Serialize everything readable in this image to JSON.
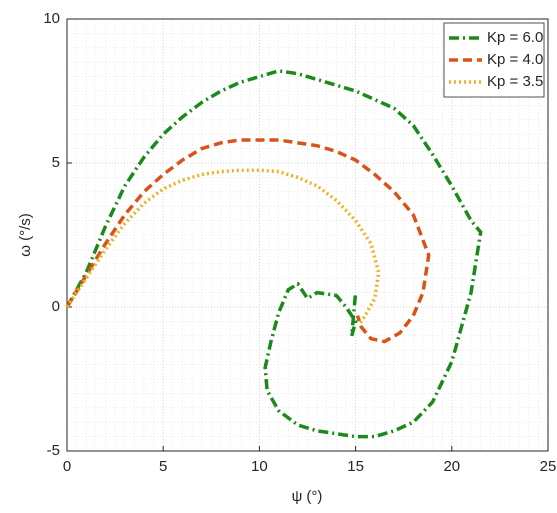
{
  "chart_data": {
    "type": "line",
    "xlabel": "ψ (°)",
    "ylabel": "ω (°/s)",
    "xlim": [
      0,
      25
    ],
    "xticks": [
      0,
      5,
      10,
      15,
      20,
      25
    ],
    "ylim": [
      -5,
      10
    ],
    "yticks": [
      -5,
      0,
      5,
      10
    ],
    "grid": true,
    "legend": "northeast",
    "series": [
      {
        "name": "Kp = 6.0",
        "color": "#1b8a1b",
        "linestyle": "dashdot",
        "x": [
          0,
          1,
          2,
          3,
          4,
          5,
          6,
          7,
          8,
          9,
          10,
          11,
          12,
          13,
          14,
          15,
          16,
          17,
          18,
          19,
          20,
          21,
          21.5,
          21,
          20,
          19,
          18,
          17,
          16,
          15,
          14,
          13,
          12,
          11,
          10.4,
          10.3,
          10.6,
          11,
          11.5,
          12,
          12.5,
          13,
          14,
          14.5,
          15,
          14.8,
          15
        ],
        "values": [
          0,
          1.2,
          2.8,
          4.2,
          5.2,
          6,
          6.6,
          7.1,
          7.5,
          7.8,
          8.0,
          8.2,
          8.1,
          7.9,
          7.7,
          7.5,
          7.2,
          6.9,
          6.3,
          5.3,
          4.2,
          3.0,
          2.6,
          0.5,
          -1.9,
          -3.3,
          -4.0,
          -4.3,
          -4.5,
          -4.5,
          -4.4,
          -4.3,
          -4.1,
          -3.6,
          -2.9,
          -2.1,
          -1.2,
          -0.2,
          0.6,
          0.8,
          0.3,
          0.5,
          0.4,
          0,
          -0.5,
          -1,
          0.5
        ]
      },
      {
        "name": "Kp = 4.0",
        "color": "#d95319",
        "linestyle": "dashed",
        "x": [
          0,
          1,
          2,
          3,
          4,
          5,
          6,
          7,
          8,
          9,
          10,
          11,
          12,
          13,
          14,
          15,
          16,
          17,
          18,
          18.8,
          18.5,
          18,
          17.3,
          16.5,
          15.8,
          15.3,
          15.1
        ],
        "values": [
          0,
          1.1,
          2.2,
          3.2,
          4,
          4.6,
          5.1,
          5.5,
          5.7,
          5.8,
          5.8,
          5.8,
          5.7,
          5.6,
          5.4,
          5.1,
          4.6,
          4,
          3.2,
          1.8,
          0.5,
          -0.3,
          -0.9,
          -1.2,
          -1.1,
          -0.7,
          -0.3
        ]
      },
      {
        "name": "Kp = 3.5",
        "color": "#edb120",
        "linestyle": "dotted",
        "x": [
          0,
          1,
          2,
          3,
          4,
          5,
          6,
          7,
          8,
          9,
          10,
          11,
          12,
          13,
          14,
          15,
          15.8,
          16.2,
          16,
          15.5,
          15.2
        ],
        "values": [
          0,
          1,
          2,
          2.9,
          3.6,
          4.1,
          4.4,
          4.6,
          4.7,
          4.75,
          4.75,
          4.7,
          4.5,
          4.2,
          3.7,
          3,
          2.2,
          1.2,
          0.3,
          -0.3,
          -0.6
        ]
      }
    ]
  }
}
